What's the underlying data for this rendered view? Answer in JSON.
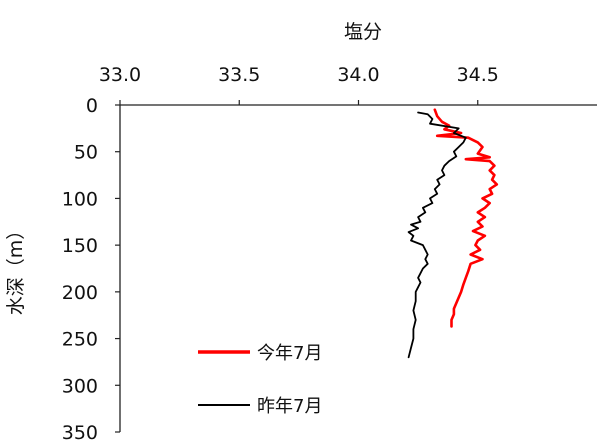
{
  "chart_data": {
    "type": "line",
    "title": "",
    "xlabel": "塩分",
    "ylabel": "水深（m）",
    "x_axis_position": "top",
    "y_axis_inverted": true,
    "xlim": [
      33.0,
      35.0
    ],
    "ylim": [
      0,
      350
    ],
    "xticks": [
      "33.0",
      "33.5",
      "34.0",
      "34.5"
    ],
    "yticks": [
      "0",
      "50",
      "100",
      "150",
      "200",
      "250",
      "300",
      "350"
    ],
    "grid": false,
    "legend_position": "bottom-center",
    "series": [
      {
        "name": "今年7月",
        "color": "#ff0000",
        "points": [
          [
            34.32,
            5
          ],
          [
            34.33,
            12
          ],
          [
            34.35,
            18
          ],
          [
            34.38,
            22
          ],
          [
            34.36,
            26
          ],
          [
            34.43,
            30
          ],
          [
            34.33,
            33
          ],
          [
            34.46,
            35
          ],
          [
            34.5,
            40
          ],
          [
            34.52,
            45
          ],
          [
            34.5,
            52
          ],
          [
            34.55,
            56
          ],
          [
            34.45,
            58
          ],
          [
            34.55,
            60
          ],
          [
            34.57,
            65
          ],
          [
            34.55,
            70
          ],
          [
            34.57,
            75
          ],
          [
            34.56,
            80
          ],
          [
            34.58,
            85
          ],
          [
            34.55,
            90
          ],
          [
            34.56,
            95
          ],
          [
            34.52,
            100
          ],
          [
            34.55,
            105
          ],
          [
            34.53,
            110
          ],
          [
            34.5,
            115
          ],
          [
            34.53,
            120
          ],
          [
            34.5,
            125
          ],
          [
            34.52,
            130
          ],
          [
            34.48,
            135
          ],
          [
            34.53,
            140
          ],
          [
            34.5,
            145
          ],
          [
            34.49,
            150
          ],
          [
            34.51,
            155
          ],
          [
            34.47,
            160
          ],
          [
            34.52,
            165
          ],
          [
            34.47,
            170
          ],
          [
            34.46,
            178
          ],
          [
            34.45,
            185
          ],
          [
            34.44,
            192
          ],
          [
            34.43,
            200
          ],
          [
            34.42,
            206
          ],
          [
            34.41,
            212
          ],
          [
            34.4,
            218
          ],
          [
            34.4,
            224
          ],
          [
            34.39,
            230
          ],
          [
            34.39,
            237
          ]
        ]
      },
      {
        "name": "昨年7月",
        "color": "#000000",
        "points": [
          [
            34.25,
            8
          ],
          [
            34.29,
            10
          ],
          [
            34.31,
            15
          ],
          [
            34.3,
            20
          ],
          [
            34.42,
            25
          ],
          [
            34.4,
            30
          ],
          [
            34.45,
            35
          ],
          [
            34.44,
            40
          ],
          [
            34.42,
            45
          ],
          [
            34.4,
            50
          ],
          [
            34.41,
            55
          ],
          [
            34.38,
            60
          ],
          [
            34.36,
            65
          ],
          [
            34.35,
            70
          ],
          [
            34.36,
            75
          ],
          [
            34.33,
            80
          ],
          [
            34.34,
            85
          ],
          [
            34.32,
            90
          ],
          [
            34.33,
            95
          ],
          [
            34.3,
            100
          ],
          [
            34.31,
            105
          ],
          [
            34.27,
            110
          ],
          [
            34.28,
            115
          ],
          [
            34.25,
            120
          ],
          [
            34.26,
            125
          ],
          [
            34.22,
            128
          ],
          [
            34.25,
            132
          ],
          [
            34.21,
            136
          ],
          [
            34.23,
            140
          ],
          [
            34.22,
            145
          ],
          [
            34.27,
            150
          ],
          [
            34.28,
            155
          ],
          [
            34.29,
            160
          ],
          [
            34.28,
            165
          ],
          [
            34.29,
            170
          ],
          [
            34.27,
            175
          ],
          [
            34.26,
            180
          ],
          [
            34.25,
            185
          ],
          [
            34.26,
            190
          ],
          [
            34.25,
            195
          ],
          [
            34.24,
            200
          ],
          [
            34.24,
            210
          ],
          [
            34.23,
            220
          ],
          [
            34.24,
            230
          ],
          [
            34.23,
            240
          ],
          [
            34.23,
            250
          ],
          [
            34.22,
            260
          ],
          [
            34.21,
            270
          ]
        ]
      }
    ]
  }
}
